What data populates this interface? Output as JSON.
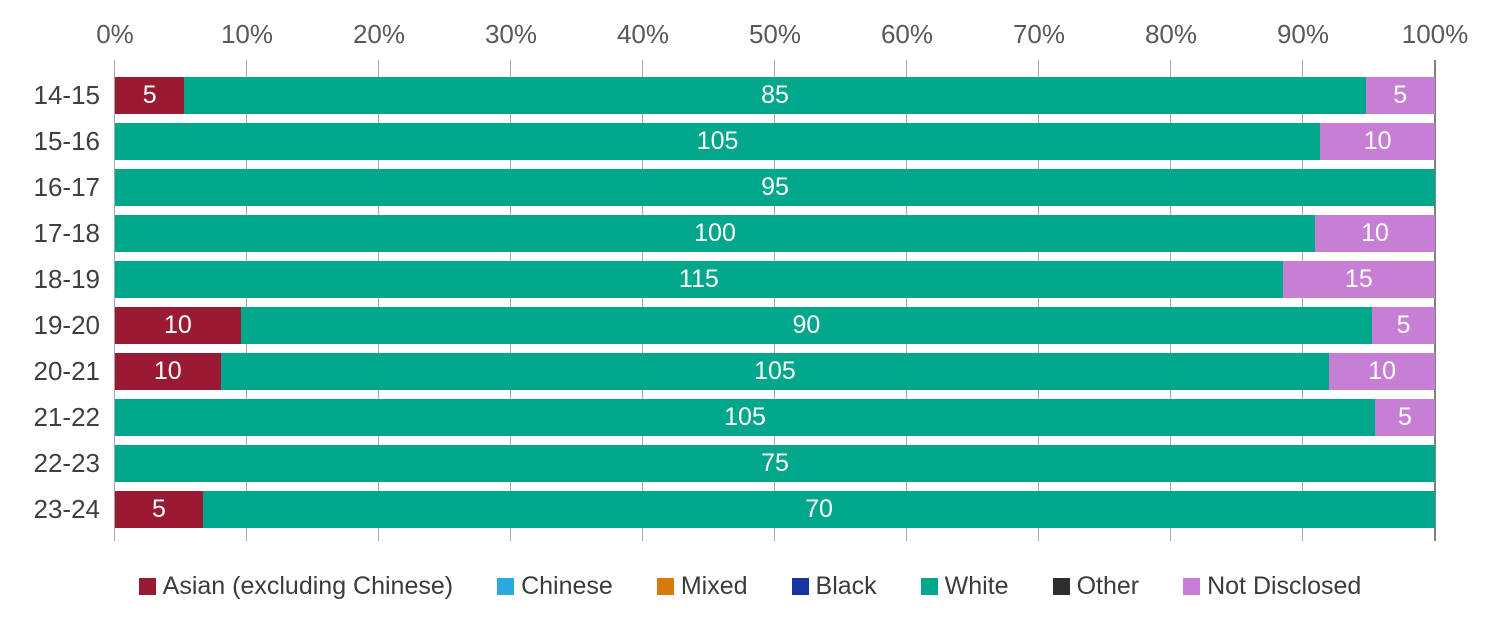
{
  "chart_data": {
    "type": "bar",
    "subtype": "stacked-100-percent",
    "orientation": "horizontal",
    "title": "",
    "categories": [
      "14-15",
      "15-16",
      "16-17",
      "17-18",
      "18-19",
      "19-20",
      "20-21",
      "21-22",
      "22-23",
      "23-24"
    ],
    "series": [
      {
        "name": "Asian (excluding Chinese)",
        "color": "#9a1a33",
        "values": [
          5,
          0,
          0,
          0,
          0,
          10,
          10,
          0,
          0,
          5
        ]
      },
      {
        "name": "Chinese",
        "color": "#29abe2",
        "values": [
          0,
          0,
          0,
          0,
          0,
          0,
          0,
          0,
          0,
          0
        ]
      },
      {
        "name": "Mixed",
        "color": "#d8790b",
        "values": [
          0,
          0,
          0,
          0,
          0,
          0,
          0,
          0,
          0,
          0
        ]
      },
      {
        "name": "Black",
        "color": "#16339e",
        "values": [
          0,
          0,
          0,
          0,
          0,
          0,
          0,
          0,
          0,
          0
        ]
      },
      {
        "name": "White",
        "color": "#00a78b",
        "values": [
          85,
          105,
          95,
          100,
          115,
          90,
          105,
          105,
          75,
          70
        ]
      },
      {
        "name": "Other",
        "color": "#2e2e2e",
        "values": [
          0,
          0,
          0,
          0,
          0,
          0,
          0,
          0,
          0,
          0
        ]
      },
      {
        "name": "Not Disclosed",
        "color": "#c77fd6",
        "values": [
          5,
          10,
          0,
          10,
          15,
          5,
          10,
          5,
          0,
          0
        ]
      }
    ],
    "x_axis": {
      "position": "top",
      "min": 0,
      "max": 100,
      "tick_labels": [
        "0%",
        "10%",
        "20%",
        "30%",
        "40%",
        "50%",
        "60%",
        "70%",
        "80%",
        "90%",
        "100%"
      ],
      "gridlines": true
    },
    "value_labels": {
      "color": "#ffffff",
      "placement": "center",
      "hide_zero": true
    },
    "legend": {
      "position": "bottom",
      "entries": [
        "Asian (excluding Chinese)",
        "Chinese",
        "Mixed",
        "Black",
        "White",
        "Other",
        "Not Disclosed"
      ]
    }
  }
}
